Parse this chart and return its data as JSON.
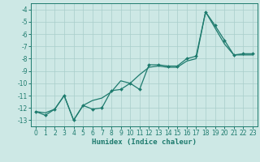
{
  "xlabel": "Humidex (Indice chaleur)",
  "background_color": "#cde8e5",
  "grid_color": "#a8ceca",
  "line_color": "#1e7b6e",
  "xlim": [
    -0.5,
    23.5
  ],
  "ylim": [
    -13.5,
    -3.5
  ],
  "x_ticks": [
    0,
    1,
    2,
    3,
    4,
    5,
    6,
    7,
    8,
    9,
    10,
    11,
    12,
    13,
    14,
    15,
    16,
    17,
    18,
    19,
    20,
    21,
    22,
    23
  ],
  "y_ticks": [
    -13,
    -12,
    -11,
    -10,
    -9,
    -8,
    -7,
    -6,
    -5,
    -4
  ],
  "line1_x": [
    0,
    1,
    2,
    3,
    4,
    5,
    6,
    7,
    8,
    9,
    10,
    11,
    12,
    13,
    14,
    15,
    16,
    17,
    18,
    19,
    20,
    21,
    22,
    23
  ],
  "line1_y": [
    -12.3,
    -12.6,
    -12.1,
    -11.0,
    -13.0,
    -11.8,
    -12.1,
    -12.0,
    -10.6,
    -10.5,
    -10.0,
    -10.5,
    -8.5,
    -8.5,
    -8.6,
    -8.6,
    -8.0,
    -7.8,
    -4.2,
    -5.3,
    -6.5,
    -7.7,
    -7.6,
    -7.6
  ],
  "line2_x": [
    0,
    1,
    2,
    3,
    4,
    5,
    6,
    7,
    8,
    9,
    10,
    11,
    12,
    13,
    14,
    15,
    16,
    17,
    18,
    19,
    20,
    21,
    22,
    23
  ],
  "line2_y": [
    -12.3,
    -12.4,
    -12.1,
    -11.0,
    -13.0,
    -11.8,
    -11.4,
    -11.2,
    -10.7,
    -9.8,
    -10.0,
    -9.3,
    -8.7,
    -8.6,
    -8.7,
    -8.7,
    -8.2,
    -8.0,
    -4.2,
    -5.5,
    -6.8,
    -7.7,
    -7.7,
    -7.7
  ],
  "ticklabel_fontsize": 5.5,
  "xlabel_fontsize": 6.5,
  "marker_size": 2.0,
  "linewidth": 0.9
}
